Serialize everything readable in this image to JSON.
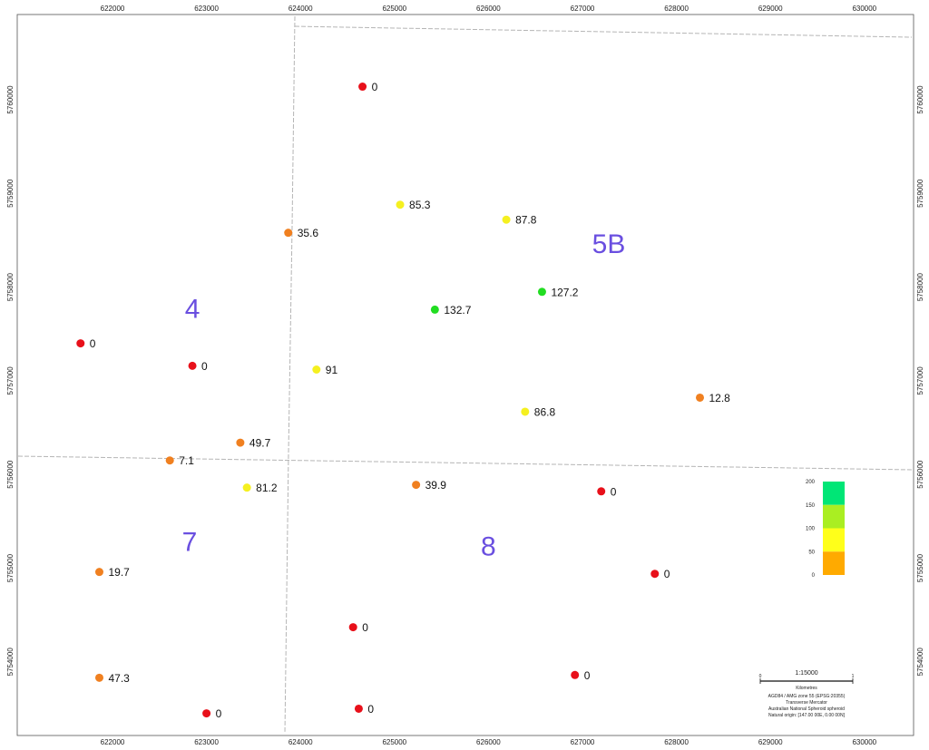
{
  "map": {
    "x_ticks": [
      "622000",
      "623000",
      "624000",
      "625000",
      "626000",
      "627000",
      "628000",
      "629000",
      "630000"
    ],
    "y_ticks": [
      "5760000",
      "5759000",
      "5758000",
      "5757000",
      "5756000",
      "5755000",
      "5754000"
    ],
    "x_tick_values": [
      622000,
      623000,
      624000,
      625000,
      626000,
      627000,
      628000,
      629000,
      630000
    ],
    "y_tick_values": [
      5760000,
      5759000,
      5758000,
      5757000,
      5756000,
      5755000,
      5754000
    ],
    "zones": [
      {
        "label": "4",
        "x": 622850,
        "y": 5757770
      },
      {
        "label": "5B",
        "x": 627280,
        "y": 5758460
      },
      {
        "label": "7",
        "x": 622820,
        "y": 5755280
      },
      {
        "label": "8",
        "x": 626000,
        "y": 5755230
      }
    ],
    "points": [
      {
        "label": "0",
        "x": 624660,
        "y": 5760140,
        "color": "#e8101a"
      },
      {
        "label": "85.3",
        "x": 625060,
        "y": 5758880,
        "color": "#f5f020"
      },
      {
        "label": "87.8",
        "x": 626190,
        "y": 5758720,
        "color": "#f5f020"
      },
      {
        "label": "35.6",
        "x": 623870,
        "y": 5758580,
        "color": "#f08020"
      },
      {
        "label": "127.2",
        "x": 626570,
        "y": 5757950,
        "color": "#22dd22"
      },
      {
        "label": "132.7",
        "x": 625430,
        "y": 5757760,
        "color": "#22dd22"
      },
      {
        "label": "0",
        "x": 621660,
        "y": 5757400,
        "color": "#e8101a"
      },
      {
        "label": "0",
        "x": 622850,
        "y": 5757160,
        "color": "#e8101a"
      },
      {
        "label": "91",
        "x": 624170,
        "y": 5757120,
        "color": "#f5f020"
      },
      {
        "label": "12.8",
        "x": 628250,
        "y": 5756820,
        "color": "#f08020"
      },
      {
        "label": "86.8",
        "x": 626390,
        "y": 5756670,
        "color": "#f5f020"
      },
      {
        "label": "49.7",
        "x": 623360,
        "y": 5756340,
        "color": "#f08020"
      },
      {
        "label": "7.1",
        "x": 622610,
        "y": 5756150,
        "color": "#f08020"
      },
      {
        "label": "81.2",
        "x": 623430,
        "y": 5755860,
        "color": "#f5f020"
      },
      {
        "label": "39.9",
        "x": 625230,
        "y": 5755890,
        "color": "#f08020"
      },
      {
        "label": "0",
        "x": 627200,
        "y": 5755820,
        "color": "#e8101a"
      },
      {
        "label": "19.7",
        "x": 621860,
        "y": 5754960,
        "color": "#f08020"
      },
      {
        "label": "0",
        "x": 627770,
        "y": 5754940,
        "color": "#e8101a"
      },
      {
        "label": "0",
        "x": 624560,
        "y": 5754370,
        "color": "#e8101a"
      },
      {
        "label": "47.3",
        "x": 621860,
        "y": 5753830,
        "color": "#f08020"
      },
      {
        "label": "0",
        "x": 626920,
        "y": 5753860,
        "color": "#e8101a"
      },
      {
        "label": "0",
        "x": 624620,
        "y": 5753500,
        "color": "#e8101a"
      },
      {
        "label": "0",
        "x": 623000,
        "y": 5753450,
        "color": "#e8101a"
      }
    ]
  },
  "legend": {
    "ticks": [
      "200",
      "150",
      "100",
      "50",
      "0"
    ],
    "bands": [
      {
        "from": 150,
        "to": 200,
        "color": "#00e676"
      },
      {
        "from": 100,
        "to": 150,
        "color": "#aaee22"
      },
      {
        "from": 50,
        "to": 100,
        "color": "#ffff1a"
      },
      {
        "from": 0,
        "to": 50,
        "color": "#ffaa00"
      }
    ]
  },
  "scale_bar": {
    "ratio": "1:15000",
    "start": "0",
    "end": "1",
    "unit": "Kilometres",
    "projection_lines": [
      "AGD84 / AMG zone 55 (EPSG:20355)",
      "Transverse Mercator",
      "Australian National Spheroid spheroid",
      "Natural origin: [147.00 00E, 0.00 00N]"
    ]
  }
}
